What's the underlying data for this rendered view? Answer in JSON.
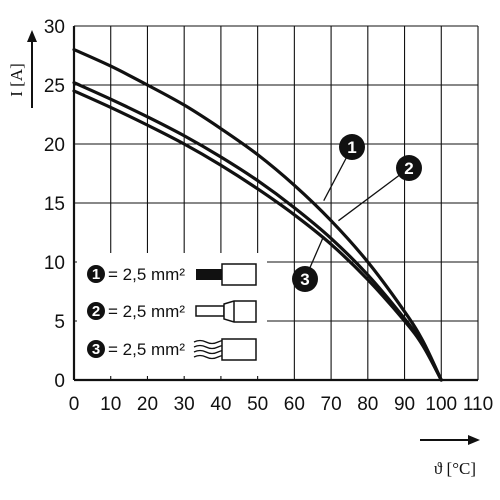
{
  "chart_data": {
    "type": "line",
    "xlabel": "ϑ [°C]",
    "ylabel": "I [A]",
    "xlim": [
      0,
      110
    ],
    "ylim": [
      0,
      30
    ],
    "xticks": [
      "0",
      "10",
      "20",
      "30",
      "40",
      "50",
      "60",
      "70",
      "80",
      "90",
      "100",
      "110"
    ],
    "yticks": [
      "0",
      "5",
      "10",
      "15",
      "20",
      "25",
      "30"
    ],
    "grid": true,
    "series": [
      {
        "name": "1",
        "x": [
          0,
          10,
          20,
          30,
          40,
          50,
          60,
          70,
          80,
          90,
          95,
          100
        ],
        "values": [
          28,
          26.6,
          25,
          23.3,
          21.3,
          19.1,
          16.5,
          13.5,
          10,
          5.8,
          3.3,
          0
        ]
      },
      {
        "name": "2",
        "x": [
          0,
          10,
          20,
          30,
          40,
          50,
          60,
          70,
          80,
          90,
          95,
          100
        ],
        "values": [
          25.2,
          23.8,
          22.3,
          20.7,
          18.9,
          16.9,
          14.6,
          12,
          8.9,
          5.2,
          3,
          0
        ]
      },
      {
        "name": "3",
        "x": [
          0,
          10,
          20,
          30,
          40,
          50,
          60,
          70,
          80,
          90,
          95,
          100
        ],
        "values": [
          24.5,
          23.1,
          21.6,
          20,
          18.2,
          16.2,
          14,
          11.5,
          8.5,
          5,
          2.9,
          0
        ]
      }
    ],
    "callouts": [
      {
        "label": "1",
        "point": [
          68,
          15.2
        ]
      },
      {
        "label": "2",
        "point": [
          72,
          13.5
        ]
      },
      {
        "label": "3",
        "point": [
          68,
          12.2
        ]
      }
    ],
    "legend": {
      "placement": "bottom-left",
      "entries": [
        {
          "marker": "1",
          "text": "= 2,5 mm²"
        },
        {
          "marker": "2",
          "text": "= 2,5 mm²"
        },
        {
          "marker": "3",
          "text": "= 2,5 mm²"
        }
      ]
    }
  }
}
